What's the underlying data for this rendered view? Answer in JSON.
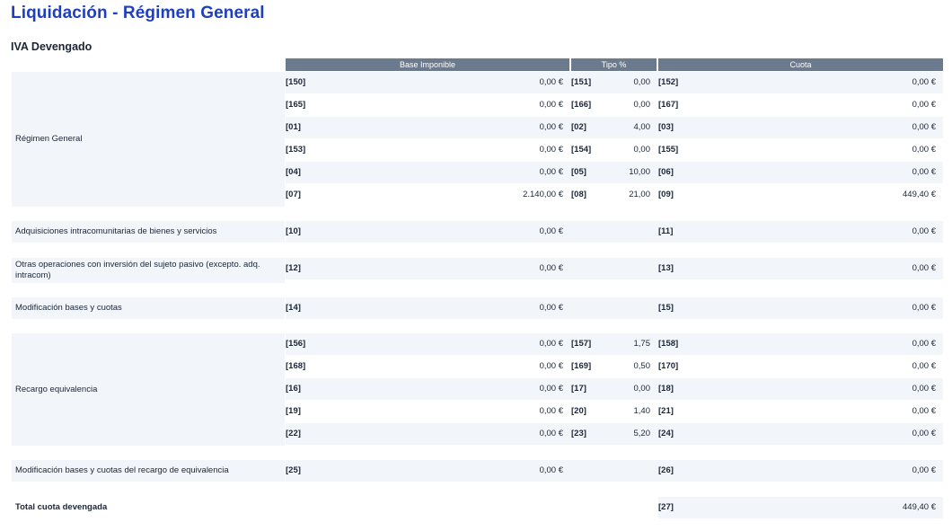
{
  "page": {
    "title": "Liquidación - Régimen General",
    "section": "IVA Devengado"
  },
  "headers": {
    "base": "Base Imponible",
    "tipo": "Tipo %",
    "cuota": "Cuota"
  },
  "groups": {
    "regimen": {
      "label": "Régimen General",
      "rows": [
        {
          "c1": "[150]",
          "v1": "0,00 €",
          "c2": "[151]",
          "v2": "0,00",
          "c3": "[152]",
          "v3": "0,00 €"
        },
        {
          "c1": "[165]",
          "v1": "0,00 €",
          "c2": "[166]",
          "v2": "0,00",
          "c3": "[167]",
          "v3": "0,00 €"
        },
        {
          "c1": "[01]",
          "v1": "0,00 €",
          "c2": "[02]",
          "v2": "4,00",
          "c3": "[03]",
          "v3": "0,00 €"
        },
        {
          "c1": "[153]",
          "v1": "0,00 €",
          "c2": "[154]",
          "v2": "0,00",
          "c3": "[155]",
          "v3": "0,00 €"
        },
        {
          "c1": "[04]",
          "v1": "0,00 €",
          "c2": "[05]",
          "v2": "10,00",
          "c3": "[06]",
          "v3": "0,00 €"
        },
        {
          "c1": "[07]",
          "v1": "2.140,00 €",
          "c2": "[08]",
          "v2": "21,00",
          "c3": "[09]",
          "v3": "449,40 €"
        }
      ]
    },
    "adquisiciones": {
      "label": "Adquisiciones intracomunitarias de bienes y servicios",
      "rows": [
        {
          "c1": "[10]",
          "v1": "0,00 €",
          "c3": "[11]",
          "v3": "0,00 €"
        }
      ]
    },
    "otras": {
      "label": "Otras operaciones con inversión del sujeto pasivo (excepto. adq. intracom)",
      "rows": [
        {
          "c1": "[12]",
          "v1": "0,00 €",
          "c3": "[13]",
          "v3": "0,00 €"
        }
      ]
    },
    "modificacion": {
      "label": "Modificación bases y cuotas",
      "rows": [
        {
          "c1": "[14]",
          "v1": "0,00 €",
          "c3": "[15]",
          "v3": "0,00 €"
        }
      ]
    },
    "recargo": {
      "label": "Recargo equivalencia",
      "rows": [
        {
          "c1": "[156]",
          "v1": "0,00 €",
          "c2": "[157]",
          "v2": "1,75",
          "c3": "[158]",
          "v3": "0,00 €"
        },
        {
          "c1": "[168]",
          "v1": "0,00 €",
          "c2": "[169]",
          "v2": "0,50",
          "c3": "[170]",
          "v3": "0,00 €"
        },
        {
          "c1": "[16]",
          "v1": "0,00 €",
          "c2": "[17]",
          "v2": "0,00",
          "c3": "[18]",
          "v3": "0,00 €"
        },
        {
          "c1": "[19]",
          "v1": "0,00 €",
          "c2": "[20]",
          "v2": "1,40",
          "c3": "[21]",
          "v3": "0,00 €"
        },
        {
          "c1": "[22]",
          "v1": "0,00 €",
          "c2": "[23]",
          "v2": "5,20",
          "c3": "[24]",
          "v3": "0,00 €"
        }
      ]
    },
    "modrecargo": {
      "label": "Modificación bases y cuotas del recargo de equivalencia",
      "rows": [
        {
          "c1": "[25]",
          "v1": "0,00 €",
          "c3": "[26]",
          "v3": "0,00 €"
        }
      ]
    },
    "total": {
      "label": "Total cuota devengada",
      "rows": [
        {
          "c3": "[27]",
          "v3": "449,40 €"
        }
      ]
    }
  }
}
